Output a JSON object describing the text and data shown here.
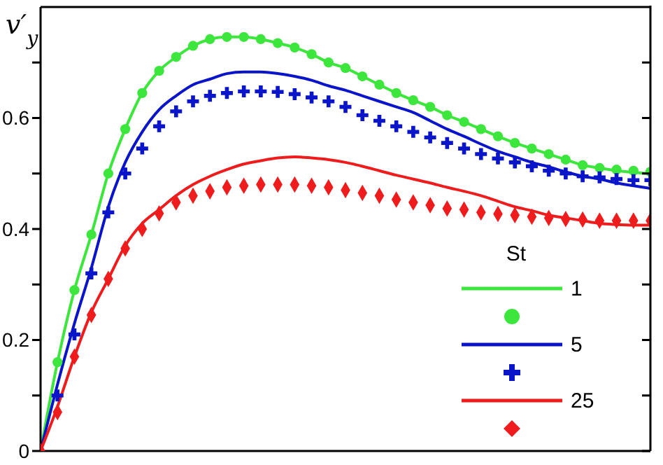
{
  "chart_data": {
    "type": "line",
    "ylabel": "v′$_{y}$",
    "legend_title": "St",
    "legend": "bottom right",
    "grid": false,
    "tick_labels": "y",
    "categories": [
      null,
      null,
      null,
      null,
      null,
      null,
      null,
      null,
      null,
      null,
      null,
      null,
      null,
      null,
      null,
      null,
      null,
      null,
      null,
      null,
      null,
      null,
      null,
      null,
      null,
      null,
      null,
      null,
      null,
      null,
      null,
      null,
      null,
      null,
      null,
      null,
      null
    ],
    "ylim": [
      0,
      0.8
    ],
    "yticks": [
      0,
      {
        "value": 0.1,
        "label": null
      },
      0.2,
      {
        "value": 0.3,
        "label": null
      },
      0.4,
      {
        "value": 0.5,
        "label": null
      },
      0.6,
      {
        "value": 0.7,
        "label": null
      }
    ],
    "series": [
      {
        "name": "1",
        "color": "#3ce63c",
        "line_style": "solid",
        "marker": "none",
        "values": [
          0,
          0.16,
          0.29,
          0.39,
          0.5,
          0.58,
          0.645,
          0.685,
          0.71,
          0.73,
          0.742,
          0.746,
          0.746,
          0.742,
          0.735,
          0.727,
          0.715,
          0.7,
          0.69,
          0.675,
          0.66,
          0.645,
          0.632,
          0.62,
          0.605,
          0.593,
          0.58,
          0.567,
          0.555,
          0.545,
          0.535,
          0.525,
          0.515,
          0.51,
          0.505,
          0.502,
          0.5
        ]
      },
      {
        "type": "scatter",
        "color": "#3ce63c",
        "marker": "circle",
        "values": [
          null,
          0.16,
          0.29,
          0.39,
          0.5,
          0.58,
          0.645,
          0.685,
          0.71,
          0.73,
          0.742,
          0.746,
          0.746,
          0.742,
          0.735,
          0.727,
          0.715,
          0.7,
          0.69,
          0.675,
          0.66,
          0.645,
          0.632,
          0.62,
          0.605,
          0.593,
          0.58,
          0.567,
          0.555,
          0.545,
          0.535,
          0.525,
          0.515,
          0.51,
          0.507,
          0.505,
          0.503
        ]
      },
      {
        "name": "5",
        "color": "#0a14c8",
        "line_style": "solid",
        "marker": "none",
        "values": [
          0,
          0.12,
          0.23,
          0.33,
          0.44,
          0.52,
          0.575,
          0.615,
          0.64,
          0.66,
          0.67,
          0.68,
          0.683,
          0.683,
          0.68,
          0.675,
          0.668,
          0.658,
          0.65,
          0.64,
          0.63,
          0.62,
          0.61,
          0.595,
          0.58,
          0.567,
          0.553,
          0.54,
          0.53,
          0.52,
          0.512,
          0.503,
          0.495,
          0.49,
          0.483,
          0.478,
          0.473
        ]
      },
      {
        "type": "scatter",
        "color": "#0a14c8",
        "marker": "cross",
        "values": [
          null,
          0.1,
          0.21,
          0.32,
          0.43,
          0.5,
          0.545,
          0.585,
          0.612,
          0.63,
          0.64,
          0.645,
          0.648,
          0.648,
          0.647,
          0.643,
          0.637,
          0.63,
          0.62,
          0.605,
          0.595,
          0.585,
          0.575,
          0.565,
          0.555,
          0.545,
          0.535,
          0.527,
          0.52,
          0.513,
          0.505,
          0.5,
          0.495,
          0.493,
          0.49,
          0.488,
          0.488
        ]
      },
      {
        "name": "25",
        "color": "#ee1c1c",
        "line_style": "solid",
        "marker": "none",
        "values": [
          0,
          0.08,
          0.17,
          0.25,
          0.31,
          0.37,
          0.41,
          0.435,
          0.46,
          0.48,
          0.495,
          0.507,
          0.517,
          0.523,
          0.528,
          0.53,
          0.528,
          0.525,
          0.52,
          0.513,
          0.505,
          0.497,
          0.49,
          0.483,
          0.475,
          0.468,
          0.46,
          0.45,
          0.44,
          0.433,
          0.425,
          0.42,
          0.415,
          0.41,
          0.408,
          0.407,
          0.407
        ]
      },
      {
        "type": "scatter",
        "color": "#ee1c1c",
        "marker": "diamond",
        "values": [
          0,
          0.07,
          0.17,
          0.245,
          0.31,
          0.365,
          0.4,
          0.428,
          0.448,
          0.46,
          0.468,
          0.475,
          0.478,
          0.48,
          0.48,
          0.48,
          0.478,
          0.475,
          0.47,
          0.465,
          0.46,
          0.453,
          0.448,
          0.443,
          0.437,
          0.435,
          0.43,
          0.427,
          0.425,
          0.422,
          0.42,
          0.418,
          0.417,
          0.415,
          0.415,
          0.415,
          0.415
        ]
      }
    ]
  }
}
